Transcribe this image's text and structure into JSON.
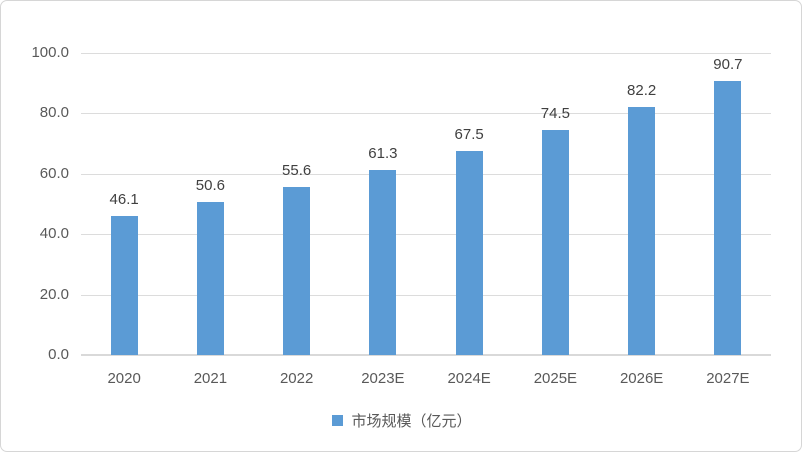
{
  "chart_data": {
    "type": "bar",
    "title": "",
    "categories": [
      "2020",
      "2021",
      "2022",
      "2023E",
      "2024E",
      "2025E",
      "2026E",
      "2027E"
    ],
    "values": [
      46.1,
      50.6,
      55.6,
      61.3,
      67.5,
      74.5,
      82.2,
      90.7
    ],
    "data_labels": [
      "46.1",
      "50.6",
      "55.6",
      "61.3",
      "67.5",
      "74.5",
      "82.2",
      "90.7"
    ],
    "xlabel": "",
    "ylabel": "",
    "ylim": [
      0,
      100
    ],
    "y_ticks": [
      {
        "value": 0,
        "label": "0.0"
      },
      {
        "value": 20,
        "label": "20.0"
      },
      {
        "value": 40,
        "label": "40.0"
      },
      {
        "value": 60,
        "label": "60.0"
      },
      {
        "value": 80,
        "label": "80.0"
      },
      {
        "value": 100,
        "label": "100.0"
      }
    ],
    "grid": true,
    "legend": {
      "label": "市场规模（亿元）",
      "position": "bottom"
    },
    "colors": {
      "bar": "#5B9BD5",
      "gridline": "#DCDCDC",
      "axis_line": "#D9D9D9",
      "tick_label": "#595959",
      "data_label": "#404040",
      "legend_text": "#595959",
      "background": "#FFFFFF",
      "card_border": "#D6D6D6"
    }
  }
}
